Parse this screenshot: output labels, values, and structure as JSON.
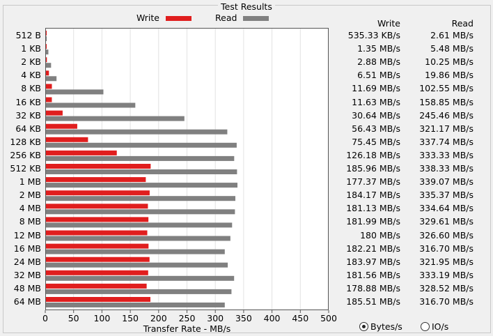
{
  "header": {
    "title": "Test Results",
    "write_label": "Write",
    "read_label": "Read",
    "write_color": "#e01e1e",
    "read_color": "#808080"
  },
  "columns": {
    "write": "Write",
    "read": "Read"
  },
  "rows": [
    {
      "size": "512 B",
      "write": "535.33 KB/s",
      "read": "2.61 MB/s"
    },
    {
      "size": "1 KB",
      "write": "1.35 MB/s",
      "read": "5.48 MB/s"
    },
    {
      "size": "2 KB",
      "write": "2.88 MB/s",
      "read": "10.25 MB/s"
    },
    {
      "size": "4 KB",
      "write": "6.51 MB/s",
      "read": "19.86 MB/s"
    },
    {
      "size": "8 KB",
      "write": "11.69 MB/s",
      "read": "102.55 MB/s"
    },
    {
      "size": "16 KB",
      "write": "11.63 MB/s",
      "read": "158.85 MB/s"
    },
    {
      "size": "32 KB",
      "write": "30.64 MB/s",
      "read": "245.46 MB/s"
    },
    {
      "size": "64 KB",
      "write": "56.43 MB/s",
      "read": "321.17 MB/s"
    },
    {
      "size": "128 KB",
      "write": "75.45 MB/s",
      "read": "337.74 MB/s"
    },
    {
      "size": "256 KB",
      "write": "126.18 MB/s",
      "read": "333.33 MB/s"
    },
    {
      "size": "512 KB",
      "write": "185.96 MB/s",
      "read": "338.33 MB/s"
    },
    {
      "size": "1 MB",
      "write": "177.37 MB/s",
      "read": "339.07 MB/s"
    },
    {
      "size": "2 MB",
      "write": "184.17 MB/s",
      "read": "335.37 MB/s"
    },
    {
      "size": "4 MB",
      "write": "181.13 MB/s",
      "read": "334.64 MB/s"
    },
    {
      "size": "8 MB",
      "write": "181.99 MB/s",
      "read": "329.61 MB/s"
    },
    {
      "size": "12 MB",
      "write": "180 MB/s",
      "read": "326.60 MB/s"
    },
    {
      "size": "16 MB",
      "write": "182.21 MB/s",
      "read": "316.70 MB/s"
    },
    {
      "size": "24 MB",
      "write": "183.97 MB/s",
      "read": "321.95 MB/s"
    },
    {
      "size": "32 MB",
      "write": "181.56 MB/s",
      "read": "333.19 MB/s"
    },
    {
      "size": "48 MB",
      "write": "178.88 MB/s",
      "read": "328.52 MB/s"
    },
    {
      "size": "64 MB",
      "write": "185.51 MB/s",
      "read": "316.70 MB/s"
    }
  ],
  "units": {
    "bytes_label": "Bytes/s",
    "io_label": "IO/s",
    "selected": "Bytes/s"
  },
  "chart_data": {
    "type": "bar",
    "orientation": "horizontal",
    "title": "Test Results",
    "xlabel": "Transfer Rate - MB/s",
    "ylabel": "",
    "xlim": [
      0,
      500
    ],
    "xticks": [
      "0",
      "50",
      "100",
      "150",
      "200",
      "250",
      "300",
      "350",
      "400",
      "450",
      "500"
    ],
    "grid": true,
    "legend_position": "top",
    "categories": [
      "512 B",
      "1 KB",
      "2 KB",
      "4 KB",
      "8 KB",
      "16 KB",
      "32 KB",
      "64 KB",
      "128 KB",
      "256 KB",
      "512 KB",
      "1 MB",
      "2 MB",
      "4 MB",
      "8 MB",
      "12 MB",
      "16 MB",
      "24 MB",
      "32 MB",
      "48 MB",
      "64 MB"
    ],
    "series": [
      {
        "name": "Write",
        "color": "#e01e1e",
        "values": [
          0.52,
          1.35,
          2.88,
          6.51,
          11.69,
          11.63,
          30.64,
          56.43,
          75.45,
          126.18,
          185.96,
          177.37,
          184.17,
          181.13,
          181.99,
          180,
          182.21,
          183.97,
          181.56,
          178.88,
          185.51
        ]
      },
      {
        "name": "Read",
        "color": "#808080",
        "values": [
          2.61,
          5.48,
          10.25,
          19.86,
          102.55,
          158.85,
          245.46,
          321.17,
          337.74,
          333.33,
          338.33,
          339.07,
          335.37,
          334.64,
          329.61,
          326.6,
          316.7,
          321.95,
          333.19,
          328.52,
          316.7
        ]
      }
    ]
  }
}
